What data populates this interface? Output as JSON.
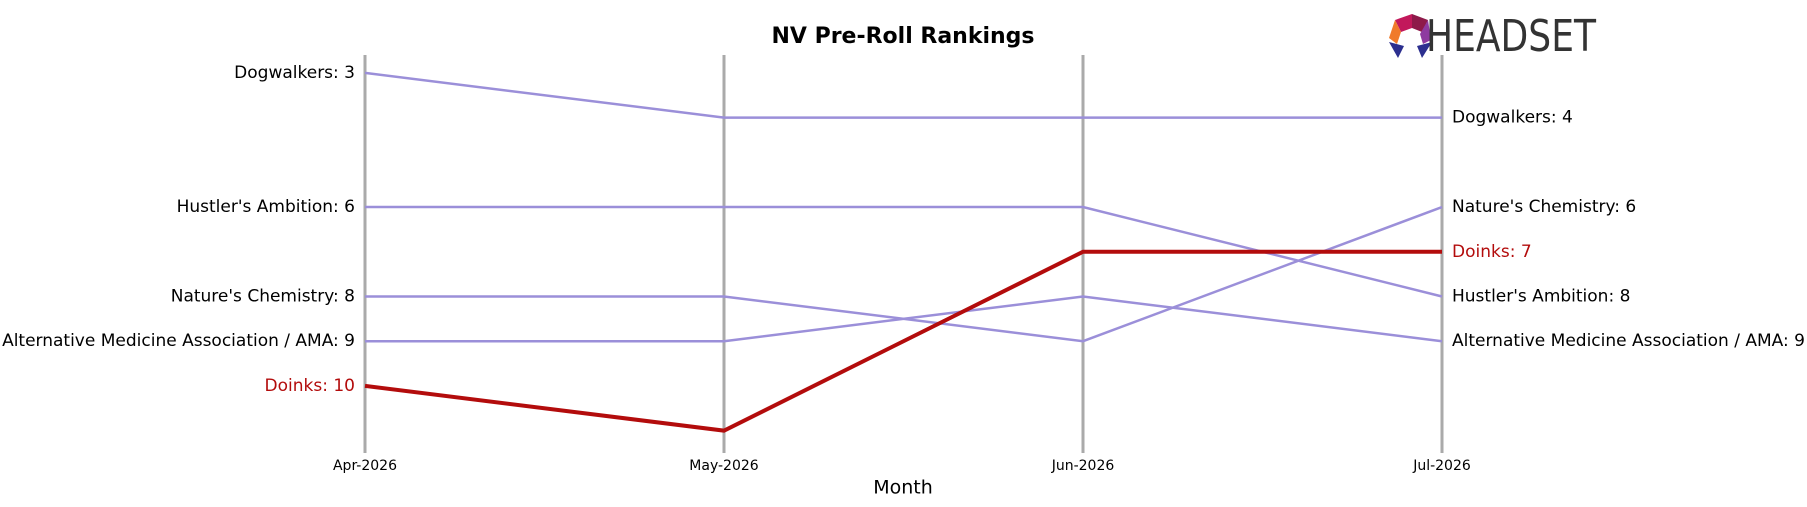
{
  "chart_data": {
    "type": "bump",
    "title": "NV Pre-Roll Rankings",
    "xlabel": "Month",
    "logo": "HEADSET",
    "categories": [
      "Apr-2026",
      "May-2026",
      "Jun-2026",
      "Jul-2026"
    ],
    "ylim": [
      11.5,
      2.6
    ],
    "series": [
      {
        "name": "Dogwalkers",
        "color": "#9b8fd9",
        "values": [
          3,
          4,
          4,
          4
        ],
        "value_labels": [
          "Dogwalkers: 3",
          null,
          null,
          "Dogwalkers: 4"
        ]
      },
      {
        "name": "Hustler's Ambition",
        "color": "#9b8fd9",
        "values": [
          6,
          6,
          6,
          8
        ],
        "value_labels": [
          "Hustler's Ambition: 6",
          null,
          null,
          "Hustler's Ambition: 8"
        ]
      },
      {
        "name": "Nature's Chemistry",
        "color": "#9b8fd9",
        "values": [
          8,
          8,
          9,
          6
        ],
        "value_labels": [
          "Nature's Chemistry: 8",
          null,
          null,
          "Nature's Chemistry: 6"
        ]
      },
      {
        "name": "Alternative Medicine Association / AMA",
        "color": "#9b8fd9",
        "values": [
          9,
          9,
          8,
          9
        ],
        "value_labels": [
          "Alternative Medicine Association / AMA: 9",
          null,
          null,
          "Alternative Medicine Association / AMA: 9"
        ]
      },
      {
        "name": "Doinks",
        "color": "#b30c0c",
        "highlight": true,
        "values": [
          10,
          11,
          7,
          7
        ],
        "value_labels": [
          "Doinks: 10",
          null,
          null,
          "Doinks: 7"
        ]
      }
    ]
  }
}
